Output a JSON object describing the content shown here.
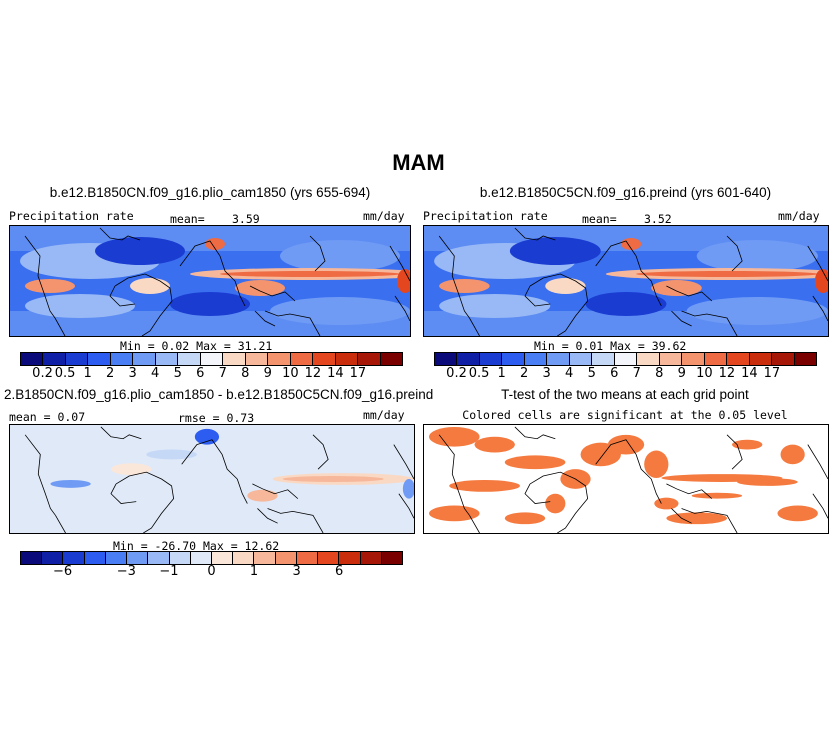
{
  "suptitle": "MAM",
  "panels": {
    "p1": {
      "title": "b.e12.B1850CN.f09_g16.plio_cam1850 (yrs 655-694)",
      "left_label": "Precipitation rate",
      "mean_label": "mean=",
      "mean_value": "3.59",
      "units": "mm/day",
      "minmax": "Min =    0.02 Max =   31.21"
    },
    "p2": {
      "title": "b.e12.B1850C5CN.f09_g16.preind (yrs 601-640)",
      "left_label": "Precipitation rate",
      "mean_label": "mean=",
      "mean_value": "3.52",
      "units": "mm/day",
      "minmax": "Min =    0.01 Max =   39.62"
    },
    "p3": {
      "title": "2.B1850CN.f09_g16.plio_cam1850 - b.e12.B1850C5CN.f09_g16.preind",
      "mean_text": "mean =  0.07",
      "rmse_text": "rmse =   0.73",
      "units": "mm/day",
      "minmax": "Min = -26.70 Max =  12.62"
    },
    "p4": {
      "title": "T-test of the two means at each grid point",
      "subtitle": "Colored cells are significant at the 0.05 level"
    }
  },
  "colorbar_abs": {
    "colors": [
      "#0a0a7a",
      "#0f1fa6",
      "#1a3cd1",
      "#2c5df0",
      "#4a7ef5",
      "#6f9bf5",
      "#98b9f5",
      "#c5d8f6",
      "#f4f5fb",
      "#fad9c4",
      "#f6b79a",
      "#f3946f",
      "#ef6b43",
      "#e4471f",
      "#c92d0c",
      "#a61707",
      "#7a0000"
    ],
    "ticks": [
      "0.2",
      "0.5",
      "1",
      "2",
      "3",
      "4",
      "5",
      "6",
      "7",
      "8",
      "9",
      "10",
      "12",
      "14",
      "17"
    ]
  },
  "colorbar_diff": {
    "colors": [
      "#0a0a7a",
      "#0f1fa6",
      "#1a3cd1",
      "#2c5df0",
      "#4a7ef5",
      "#6f9bf5",
      "#98b9f5",
      "#c5d8f6",
      "#dfe9f8",
      "#fbe7da",
      "#fad9c4",
      "#f6b79a",
      "#f3946f",
      "#ef6b43",
      "#e4471f",
      "#c92d0c",
      "#a61707",
      "#7a0000"
    ],
    "ticks": [
      "−6",
      "−3",
      "−1",
      "0",
      "1",
      "3",
      "6"
    ]
  },
  "ttest_color": "#f47a3f"
}
